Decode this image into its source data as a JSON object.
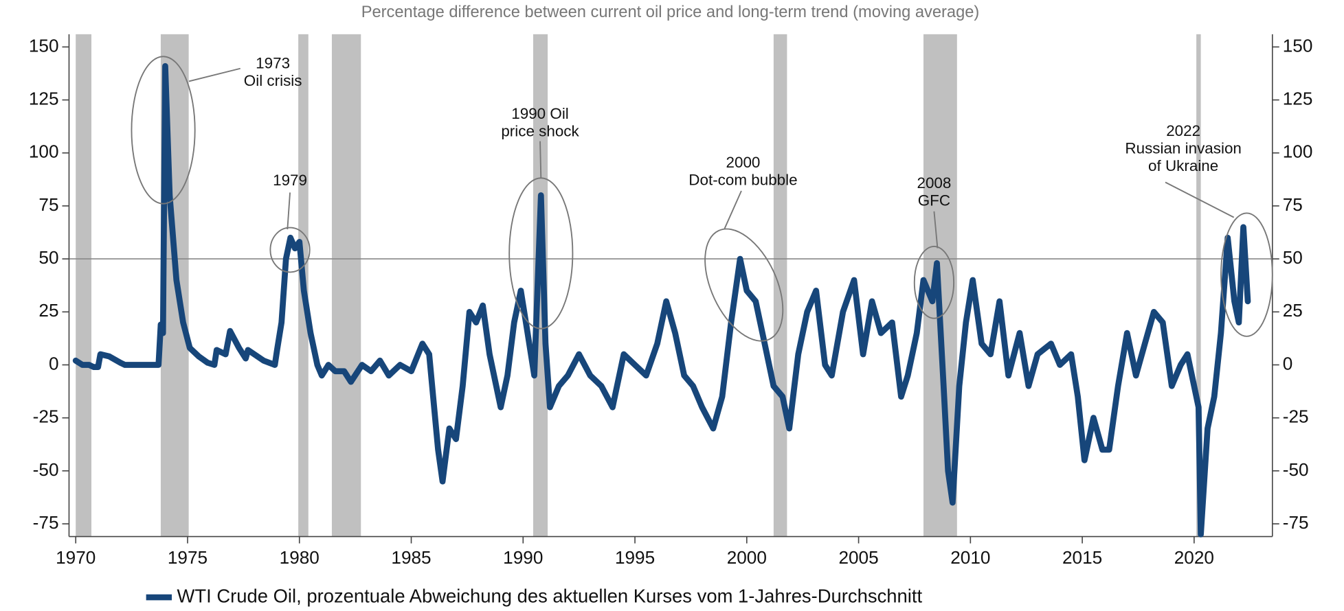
{
  "chart_data": {
    "type": "line",
    "title": "Percentage difference between current oil price and long-term trend (moving average)",
    "xlim": [
      1969.7,
      2023.5
    ],
    "ylim": [
      -81,
      156
    ],
    "xticks": [
      1970,
      1975,
      1980,
      1985,
      1990,
      1995,
      2000,
      2005,
      2010,
      2015,
      2020
    ],
    "yticks": [
      -75,
      -50,
      -25,
      0,
      25,
      50,
      75,
      100,
      125,
      150
    ],
    "reference_line": 50,
    "shaded_periods": [
      [
        1970.0,
        1970.7
      ],
      [
        1973.8,
        1975.05
      ],
      [
        1979.95,
        1980.4
      ],
      [
        1981.45,
        1982.75
      ],
      [
        1990.45,
        1991.1
      ],
      [
        2001.2,
        2001.8
      ],
      [
        2007.9,
        2009.4
      ],
      [
        2020.1,
        2020.3
      ]
    ],
    "annotations": [
      {
        "text": [
          "1973",
          "Oil crisis"
        ]
      },
      {
        "text": [
          "1979"
        ]
      },
      {
        "text": [
          "1990 Oil",
          "price shock"
        ]
      },
      {
        "text": [
          "2000",
          "Dot-com bubble"
        ]
      },
      {
        "text": [
          "2008",
          "GFC"
        ]
      },
      {
        "text": [
          "2022",
          "Russian invasion",
          "of Ukraine"
        ]
      }
    ],
    "x": [
      1970,
      1970.3,
      1970.6,
      1970.8,
      1971,
      1971.1,
      1971.5,
      1972,
      1972.2,
      1973.7,
      1973.8,
      1973.9,
      1974.0,
      1974.2,
      1974.5,
      1974.8,
      1975.1,
      1975.5,
      1975.9,
      1976.2,
      1976.3,
      1976.7,
      1976.9,
      1977.3,
      1977.6,
      1977.7,
      1978.4,
      1978.9,
      1979,
      1979.2,
      1979.4,
      1979.6,
      1979.8,
      1980,
      1980.2,
      1980.5,
      1980.8,
      1981,
      1981.3,
      1981.6,
      1982,
      1982.3,
      1982.8,
      1983.2,
      1983.6,
      1984,
      1984.5,
      1985,
      1985.5,
      1985.8,
      1986.2,
      1986.4,
      1986.7,
      1987,
      1987.3,
      1987.6,
      1987.9,
      1988.2,
      1988.5,
      1988.8,
      1989,
      1989.3,
      1989.6,
      1989.9,
      1990.2,
      1990.5,
      1990.8,
      1991,
      1991.2,
      1991.6,
      1992,
      1992.5,
      1993,
      1993.5,
      1994,
      1994.5,
      1995,
      1995.5,
      1996,
      1996.4,
      1996.8,
      1997.2,
      1997.6,
      1998,
      1998.5,
      1998.9,
      1999.3,
      1999.7,
      2000,
      2000.4,
      2000.8,
      2001.2,
      2001.6,
      2001.9,
      2002.3,
      2002.7,
      2003.1,
      2003.5,
      2003.8,
      2004.3,
      2004.8,
      2005.2,
      2005.6,
      2006,
      2006.5,
      2006.9,
      2007.2,
      2007.6,
      2007.9,
      2008.3,
      2008.5,
      2008.8,
      2009,
      2009.2,
      2009.5,
      2009.8,
      2010.1,
      2010.5,
      2010.9,
      2011.3,
      2011.7,
      2012.2,
      2012.6,
      2013,
      2013.6,
      2014,
      2014.5,
      2014.8,
      2015.1,
      2015.5,
      2015.9,
      2016.2,
      2016.6,
      2017,
      2017.4,
      2017.8,
      2018.2,
      2018.6,
      2019,
      2019.4,
      2019.7,
      2020.2,
      2020.3,
      2020.6,
      2020.9,
      2021.2,
      2021.5,
      2021.8,
      2022,
      2022.2,
      2022.4
    ],
    "series": [
      {
        "name": "WTI Crude Oil, prozentuale Abweichung des aktuellen Kurses vom 1-Jahres-Durchschnitt",
        "color": "#17467a",
        "values": [
          2,
          0,
          0,
          -1,
          -1,
          5,
          4,
          1,
          0,
          0,
          19,
          15,
          141,
          80,
          40,
          20,
          8,
          4,
          1,
          0,
          7,
          5,
          16,
          8,
          3,
          7,
          2,
          0,
          7,
          20,
          50,
          60,
          55,
          58,
          35,
          15,
          0,
          -5,
          0,
          -3,
          -3,
          -8,
          0,
          -3,
          2,
          -5,
          0,
          -3,
          10,
          5,
          -40,
          -55,
          -30,
          -35,
          -10,
          25,
          20,
          28,
          5,
          -10,
          -20,
          -5,
          20,
          35,
          15,
          -5,
          80,
          10,
          -20,
          -10,
          -5,
          5,
          -5,
          -10,
          -20,
          5,
          0,
          -5,
          10,
          30,
          15,
          -5,
          -10,
          -20,
          -30,
          -15,
          20,
          50,
          35,
          30,
          10,
          -10,
          -15,
          -30,
          5,
          25,
          35,
          0,
          -5,
          25,
          40,
          5,
          30,
          15,
          20,
          -15,
          -5,
          15,
          40,
          30,
          48,
          -10,
          -50,
          -65,
          -10,
          20,
          40,
          10,
          5,
          30,
          -5,
          15,
          -10,
          5,
          10,
          0,
          5,
          -15,
          -45,
          -25,
          -40,
          -40,
          -10,
          15,
          -5,
          10,
          25,
          20,
          -10,
          0,
          5,
          -20,
          -80,
          -30,
          -15,
          15,
          60,
          30,
          20,
          65,
          30
        ]
      }
    ],
    "legend": "bottom"
  }
}
